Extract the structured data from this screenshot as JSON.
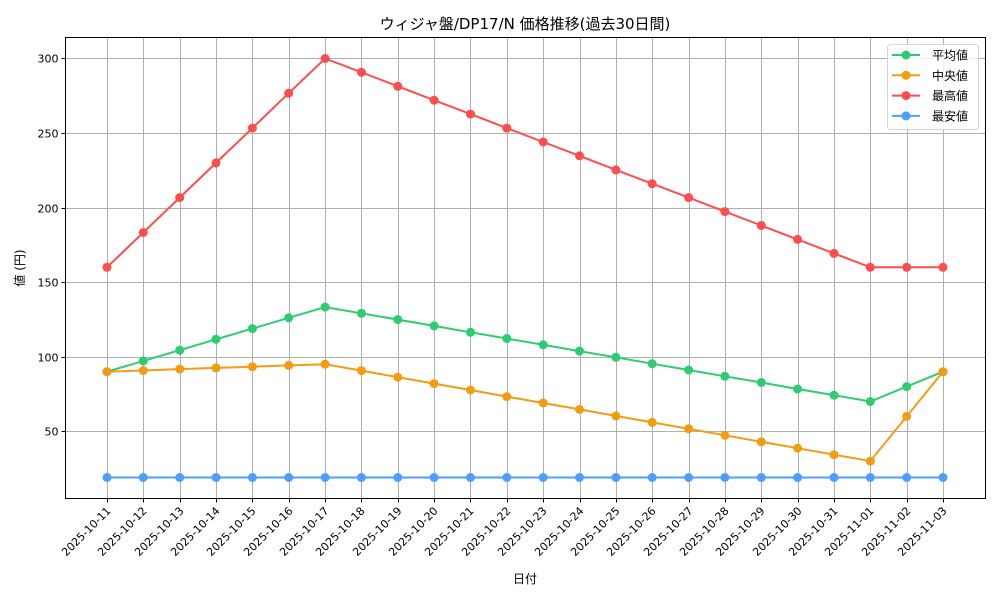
{
  "chart_data": {
    "type": "line",
    "title": "ウィジャ盤/DP17/N 価格推移(過去30日間)",
    "xlabel": "日付",
    "ylabel": "値 (円)",
    "ylim": [
      4.95,
      314.05
    ],
    "yticks": [
      50,
      100,
      150,
      200,
      250,
      300
    ],
    "grid": true,
    "legend_position": "upper right",
    "categories": [
      "2025-10-11",
      "2025-10-12",
      "2025-10-13",
      "2025-10-14",
      "2025-10-15",
      "2025-10-16",
      "2025-10-17",
      "2025-10-18",
      "2025-10-19",
      "2025-10-20",
      "2025-10-21",
      "2025-10-22",
      "2025-10-23",
      "2025-10-24",
      "2025-10-25",
      "2025-10-26",
      "2025-10-27",
      "2025-10-28",
      "2025-10-29",
      "2025-10-30",
      "2025-10-31",
      "2025-11-01",
      "2025-11-02",
      "2025-11-03"
    ],
    "series": [
      {
        "name": "平均値",
        "color": "#2ecc71",
        "values": [
          90,
          97.2,
          104.4,
          111.7,
          118.9,
          126.1,
          133.3,
          129.1,
          124.9,
          120.7,
          116.4,
          112.2,
          108.0,
          103.8,
          99.6,
          95.3,
          91.1,
          86.9,
          82.7,
          78.4,
          74.2,
          70,
          80,
          90
        ]
      },
      {
        "name": "中央値",
        "color": "#f39c12",
        "values": [
          90,
          90.8,
          91.7,
          92.5,
          93.3,
          94.2,
          95,
          90.7,
          86.3,
          82,
          77.7,
          73.3,
          69,
          64.7,
          60.3,
          56,
          51.7,
          47.3,
          43,
          38.7,
          34.3,
          30,
          60,
          90
        ]
      },
      {
        "name": "最高値",
        "color": "#ff4d4d",
        "values": [
          160,
          183.3,
          206.7,
          230,
          253.3,
          276.7,
          300,
          290.7,
          281.3,
          272,
          262.7,
          253.3,
          244,
          234.7,
          225.3,
          216,
          206.7,
          197.3,
          188,
          178.7,
          169.3,
          160,
          160,
          160
        ]
      },
      {
        "name": "最安値",
        "color": "#4d9eff",
        "values": [
          19,
          19,
          19,
          19,
          19,
          19,
          19,
          19,
          19,
          19,
          19,
          19,
          19,
          19,
          19,
          19,
          19,
          19,
          19,
          19,
          19,
          19,
          19,
          19
        ]
      }
    ]
  }
}
